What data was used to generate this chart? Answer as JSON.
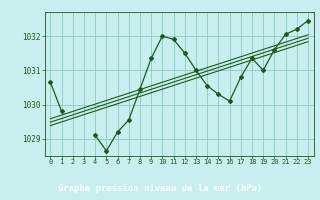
{
  "title": "Graphe pression niveau de la mer (hPa)",
  "bg_plot": "#c8eef0",
  "bg_title": "#2a7a2a",
  "title_color": "#ffffff",
  "grid_color": "#88ccbb",
  "line_color": "#1a5c1a",
  "x_values": [
    0,
    1,
    2,
    3,
    4,
    5,
    6,
    7,
    8,
    9,
    10,
    11,
    12,
    13,
    14,
    15,
    16,
    17,
    18,
    19,
    20,
    21,
    22,
    23
  ],
  "y_main": [
    1030.65,
    1029.8,
    null,
    null,
    1029.1,
    1028.65,
    1029.2,
    1029.55,
    1030.45,
    1031.35,
    1032.0,
    1031.9,
    1031.5,
    1031.0,
    1030.55,
    1030.3,
    1030.1,
    1030.8,
    1031.35,
    1031.0,
    1031.6,
    1032.05,
    1032.2,
    1032.45
  ],
  "ylim": [
    1028.5,
    1032.7
  ],
  "xlim": [
    -0.5,
    23.5
  ],
  "yticks": [
    1029,
    1030,
    1031,
    1032
  ],
  "xticks": [
    0,
    1,
    2,
    3,
    4,
    5,
    6,
    7,
    8,
    9,
    10,
    11,
    12,
    13,
    14,
    15,
    16,
    17,
    18,
    19,
    20,
    21,
    22,
    23
  ],
  "band_offsets": [
    -0.1,
    0.0,
    0.1
  ],
  "figsize": [
    3.2,
    2.0
  ],
  "dpi": 100
}
